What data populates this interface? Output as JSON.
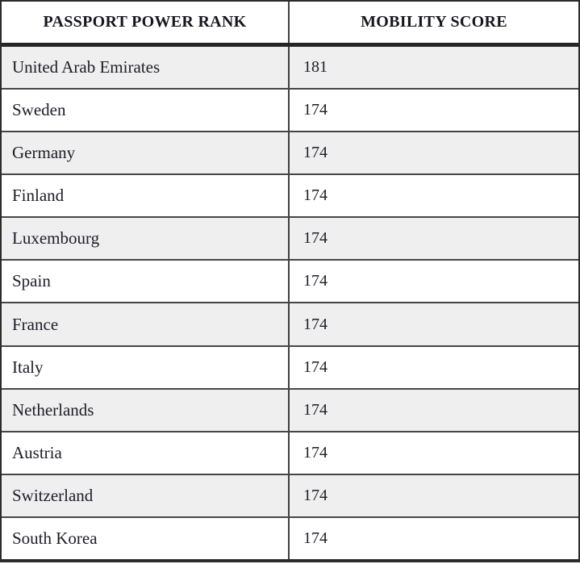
{
  "table": {
    "headers": [
      "PASSPORT POWER RANK",
      "MOBILITY SCORE"
    ],
    "rows": [
      {
        "country": "United Arab Emirates",
        "score": "181"
      },
      {
        "country": "Sweden",
        "score": "174"
      },
      {
        "country": "Germany",
        "score": "174"
      },
      {
        "country": "Finland",
        "score": "174"
      },
      {
        "country": "Luxembourg",
        "score": "174"
      },
      {
        "country": "Spain",
        "score": "174"
      },
      {
        "country": "France",
        "score": "174"
      },
      {
        "country": "Italy",
        "score": "174"
      },
      {
        "country": "Netherlands",
        "score": "174"
      },
      {
        "country": "Austria",
        "score": "174"
      },
      {
        "country": "Switzerland",
        "score": "174"
      },
      {
        "country": "South Korea",
        "score": "174"
      }
    ],
    "colors": {
      "row_alt_background": "#efefef",
      "outer_border": "#2b2b2b",
      "header_separator": "#262626",
      "row_divider": "#464646",
      "text": "#1d1d27"
    }
  },
  "chart_data": {
    "type": "table",
    "columns": [
      "PASSPORT POWER RANK",
      "MOBILITY SCORE"
    ],
    "rows": [
      [
        "United Arab Emirates",
        181
      ],
      [
        "Sweden",
        174
      ],
      [
        "Germany",
        174
      ],
      [
        "Finland",
        174
      ],
      [
        "Luxembourg",
        174
      ],
      [
        "Spain",
        174
      ],
      [
        "France",
        174
      ],
      [
        "Italy",
        174
      ],
      [
        "Netherlands",
        174
      ],
      [
        "Austria",
        174
      ],
      [
        "Switzerland",
        174
      ],
      [
        "South Korea",
        174
      ]
    ],
    "layout": {
      "striped_rows": "odd rows shaded",
      "header_bold": true
    }
  }
}
